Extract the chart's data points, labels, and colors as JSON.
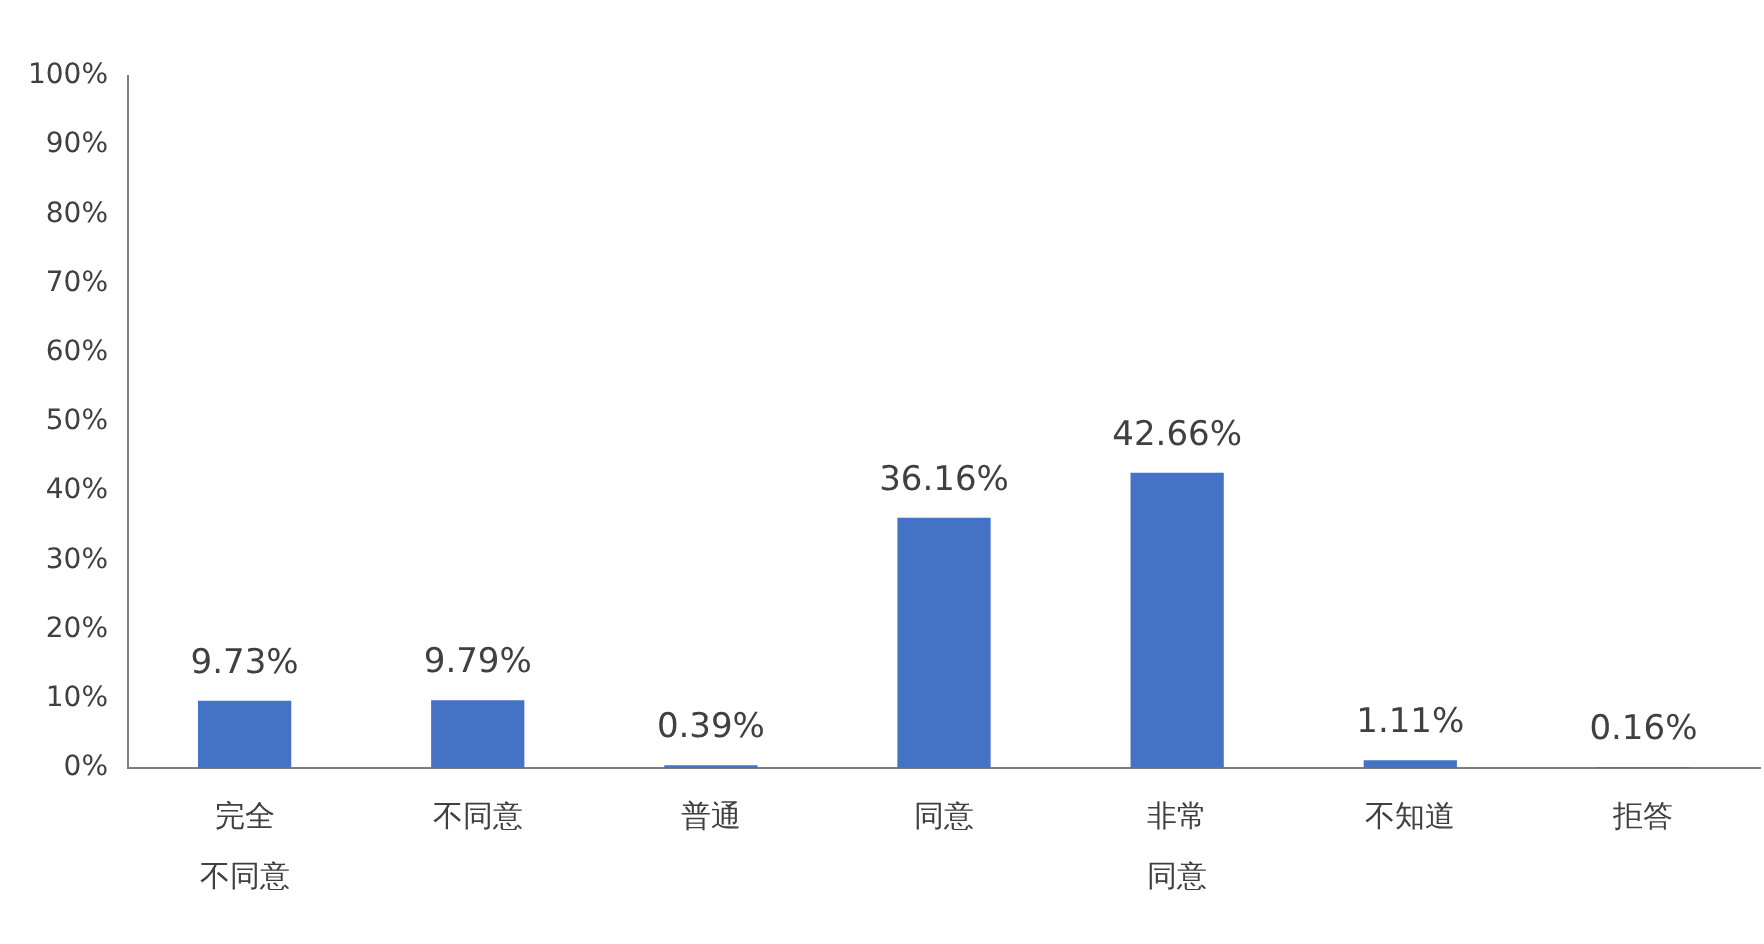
{
  "chart_data": {
    "type": "bar",
    "categories": [
      "完全不同意",
      "不同意",
      "普通",
      "同意",
      "非常同意",
      "不知道",
      "拒答"
    ],
    "values": [
      9.73,
      9.79,
      0.39,
      36.16,
      42.66,
      1.11,
      0.16
    ],
    "value_labels": [
      "9.73%",
      "9.79%",
      "0.39%",
      "36.16%",
      "42.66%",
      "1.11%",
      "0.16%"
    ],
    "color": "#4472c4",
    "ylim": [
      0,
      100
    ],
    "yticks": [
      {
        "value": 0,
        "label": "0%"
      },
      {
        "value": 10,
        "label": "10%"
      },
      {
        "value": 20,
        "label": "20%"
      },
      {
        "value": 30,
        "label": "30%"
      },
      {
        "value": 40,
        "label": "40%"
      },
      {
        "value": 50,
        "label": "50%"
      },
      {
        "value": 60,
        "label": "60%"
      },
      {
        "value": 70,
        "label": "70%"
      },
      {
        "value": 80,
        "label": "80%"
      },
      {
        "value": 90,
        "label": "90%"
      },
      {
        "value": 100,
        "label": "100%"
      }
    ],
    "grid": false,
    "legend": false
  }
}
